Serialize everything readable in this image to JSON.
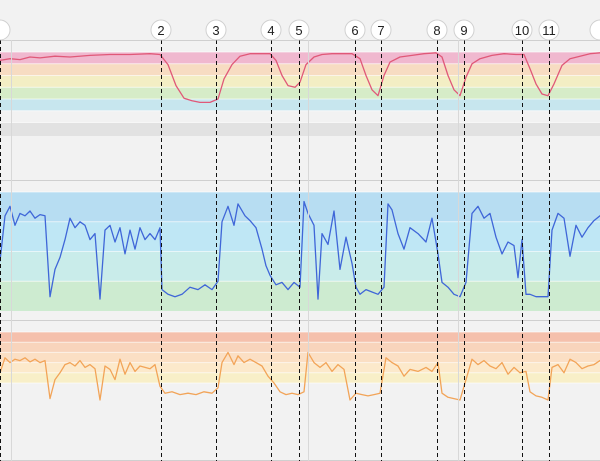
{
  "chart_data": [
    {
      "type": "line",
      "panel": "top",
      "title": "",
      "xlabel": "",
      "ylabel": "",
      "xlim": [
        0,
        600
      ],
      "ylim": [
        0,
        100
      ],
      "bands": [
        {
          "from": 86,
          "to": 100,
          "color": "#f0b8cf"
        },
        {
          "from": 72,
          "to": 86,
          "color": "#f7dcc2"
        },
        {
          "from": 58,
          "to": 72,
          "color": "#f3eec4"
        },
        {
          "from": 44,
          "to": 58,
          "color": "#d6ecc8"
        },
        {
          "from": 30,
          "to": 44,
          "color": "#c7e6ee"
        },
        {
          "from": 16,
          "to": 30,
          "color": "#f2f2f2"
        },
        {
          "from": 0,
          "to": 16,
          "color": "#e2e2e2"
        }
      ],
      "series": [
        {
          "color": "#e05878",
          "x": [
            0,
            10,
            20,
            30,
            40,
            55,
            70,
            90,
            110,
            130,
            150,
            160,
            168,
            176,
            184,
            192,
            200,
            210,
            218,
            224,
            232,
            240,
            250,
            260,
            270,
            276,
            282,
            288,
            295,
            300,
            306,
            314,
            322,
            332,
            342,
            352,
            360,
            366,
            372,
            378,
            384,
            390,
            400,
            412,
            424,
            436,
            442,
            448,
            454,
            460,
            466,
            472,
            480,
            492,
            504,
            516,
            524,
            530,
            536,
            542,
            548,
            554,
            562,
            570,
            580,
            590,
            600
          ],
          "values": [
            90,
            92,
            91,
            94,
            93,
            95,
            94,
            96,
            97,
            97,
            98,
            97,
            85,
            60,
            45,
            42,
            40,
            40,
            44,
            68,
            85,
            95,
            98,
            98,
            98,
            90,
            72,
            60,
            58,
            64,
            85,
            94,
            97,
            98,
            98,
            98,
            92,
            72,
            55,
            48,
            72,
            88,
            94,
            96,
            98,
            99,
            94,
            72,
            55,
            48,
            70,
            86,
            92,
            96,
            98,
            97,
            97,
            80,
            62,
            50,
            48,
            62,
            84,
            92,
            95,
            98,
            99
          ]
        }
      ]
    },
    {
      "type": "line",
      "panel": "middle",
      "title": "",
      "xlabel": "",
      "ylabel": "",
      "xlim": [
        0,
        600
      ],
      "ylim": [
        0,
        100
      ],
      "bands": [
        {
          "from": 75,
          "to": 100,
          "color": "#b7ddf2"
        },
        {
          "from": 50,
          "to": 75,
          "color": "#bfe7f5"
        },
        {
          "from": 25,
          "to": 50,
          "color": "#c9ecea"
        },
        {
          "from": 0,
          "to": 25,
          "color": "#cdebd0"
        }
      ],
      "series": [
        {
          "color": "#3f66d8",
          "x": [
            0,
            5,
            10,
            15,
            20,
            25,
            30,
            35,
            40,
            45,
            50,
            55,
            60,
            65,
            70,
            75,
            80,
            85,
            90,
            95,
            100,
            105,
            110,
            115,
            120,
            125,
            130,
            135,
            140,
            145,
            150,
            155,
            160,
            162,
            168,
            175,
            182,
            190,
            198,
            205,
            212,
            218,
            222,
            228,
            234,
            238,
            245,
            250,
            256,
            262,
            266,
            270,
            276,
            282,
            288,
            294,
            300,
            304,
            308,
            314,
            318,
            322,
            328,
            334,
            340,
            346,
            352,
            356,
            360,
            366,
            372,
            378,
            384,
            388,
            392,
            398,
            404,
            410,
            418,
            426,
            432,
            438,
            442,
            448,
            454,
            460,
            466,
            472,
            478,
            484,
            490,
            496,
            502,
            508,
            514,
            518,
            522,
            526,
            530,
            536,
            542,
            548,
            552,
            558,
            564,
            570,
            576,
            582,
            588,
            594,
            600
          ],
          "values": [
            42,
            80,
            88,
            72,
            82,
            80,
            84,
            78,
            81,
            80,
            12,
            35,
            45,
            60,
            78,
            70,
            75,
            72,
            60,
            65,
            10,
            68,
            72,
            58,
            70,
            48,
            68,
            52,
            70,
            60,
            65,
            60,
            70,
            18,
            14,
            12,
            14,
            20,
            18,
            22,
            18,
            25,
            75,
            88,
            72,
            90,
            80,
            76,
            70,
            52,
            38,
            30,
            22,
            24,
            18,
            24,
            20,
            92,
            82,
            72,
            10,
            65,
            56,
            84,
            35,
            62,
            40,
            20,
            14,
            18,
            16,
            14,
            20,
            90,
            85,
            65,
            52,
            70,
            65,
            58,
            78,
            48,
            24,
            20,
            14,
            12,
            24,
            82,
            88,
            78,
            82,
            62,
            48,
            58,
            55,
            28,
            60,
            14,
            14,
            12,
            12,
            12,
            68,
            82,
            78,
            46,
            72,
            62,
            70,
            76,
            80
          ]
        }
      ]
    },
    {
      "type": "line",
      "panel": "bottom",
      "title": "",
      "xlabel": "",
      "ylabel": "",
      "xlim": [
        0,
        600
      ],
      "ylim": [
        0,
        100
      ],
      "bands": [
        {
          "from": 85,
          "to": 100,
          "color": "#f5c0ac"
        },
        {
          "from": 70,
          "to": 85,
          "color": "#f8d4bc"
        },
        {
          "from": 55,
          "to": 70,
          "color": "#fbdfc4"
        },
        {
          "from": 40,
          "to": 55,
          "color": "#fce9cb"
        },
        {
          "from": 25,
          "to": 40,
          "color": "#f8efc8"
        },
        {
          "from": 0,
          "to": 25,
          "color": "#f2f2f2"
        }
      ],
      "series": [
        {
          "color": "#f2a458",
          "x": [
            0,
            5,
            10,
            15,
            20,
            25,
            30,
            35,
            40,
            45,
            50,
            55,
            60,
            65,
            70,
            75,
            80,
            85,
            90,
            95,
            100,
            105,
            110,
            115,
            120,
            125,
            130,
            135,
            140,
            145,
            150,
            155,
            160,
            165,
            172,
            180,
            188,
            196,
            204,
            212,
            218,
            222,
            228,
            234,
            238,
            244,
            250,
            256,
            262,
            268,
            274,
            280,
            286,
            292,
            298,
            304,
            308,
            314,
            320,
            326,
            332,
            338,
            344,
            350,
            356,
            362,
            368,
            374,
            380,
            386,
            392,
            398,
            404,
            410,
            418,
            426,
            432,
            438,
            442,
            448,
            454,
            460,
            466,
            472,
            478,
            484,
            490,
            496,
            502,
            508,
            514,
            520,
            526,
            530,
            536,
            542,
            548,
            552,
            558,
            564,
            570,
            576,
            582,
            588,
            594,
            600
          ],
          "values": [
            40,
            62,
            55,
            60,
            58,
            62,
            56,
            60,
            55,
            58,
            2,
            30,
            40,
            52,
            55,
            50,
            58,
            48,
            52,
            46,
            0,
            50,
            45,
            30,
            60,
            38,
            55,
            42,
            50,
            48,
            46,
            52,
            20,
            10,
            12,
            8,
            10,
            8,
            12,
            10,
            18,
            55,
            70,
            52,
            65,
            55,
            60,
            55,
            50,
            35,
            25,
            12,
            8,
            10,
            8,
            12,
            70,
            55,
            48,
            55,
            42,
            52,
            45,
            0,
            10,
            8,
            6,
            8,
            10,
            62,
            55,
            50,
            35,
            45,
            42,
            48,
            42,
            55,
            10,
            4,
            2,
            0,
            30,
            60,
            52,
            58,
            50,
            46,
            55,
            38,
            48,
            40,
            42,
            12,
            6,
            4,
            0,
            48,
            52,
            40,
            60,
            55,
            46,
            50,
            52,
            58
          ]
        }
      ]
    }
  ],
  "markers": [
    {
      "label": "",
      "x": 0
    },
    {
      "label": "2",
      "x": 161
    },
    {
      "label": "3",
      "x": 216
    },
    {
      "label": "4",
      "x": 271
    },
    {
      "label": "5",
      "x": 299
    },
    {
      "label": "6",
      "x": 355
    },
    {
      "label": "7",
      "x": 381
    },
    {
      "label": "8",
      "x": 437
    },
    {
      "label": "9",
      "x": 464
    },
    {
      "label": "10",
      "x": 522
    },
    {
      "label": "11",
      "x": 549
    },
    {
      "label": "",
      "x": 600
    }
  ]
}
